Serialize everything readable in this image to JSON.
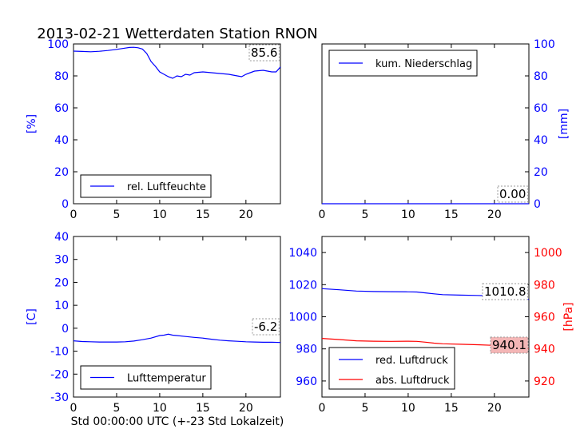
{
  "title": "2013-02-21 Wetterdaten Station RNON",
  "xlabel": "Std 00:00:00 UTC (+-23 Std Lokalzeit)",
  "colors": {
    "blue": "#0000ff",
    "red": "#ff0000",
    "black": "#000000",
    "value_box_red": "#f4b6b6"
  },
  "chart_data": [
    {
      "type": "line",
      "panel": "top-left",
      "xlim": [
        0,
        24
      ],
      "ylim": [
        0,
        100
      ],
      "xticks": [
        0,
        5,
        10,
        15,
        20
      ],
      "yticks": [
        0,
        20,
        40,
        60,
        80,
        100
      ],
      "ylabel": "[%]",
      "ylabel_side": "left",
      "legend_placement": "lower-left",
      "current_value": "85.6",
      "series": [
        {
          "name": "rel. Luftfeuchte",
          "color": "#0000ff",
          "x": [
            0,
            1,
            2,
            3,
            4,
            5,
            6,
            6.5,
            7,
            7.5,
            8,
            8.5,
            9,
            9.5,
            10,
            10.5,
            11,
            11.5,
            12,
            12.5,
            13,
            13.5,
            14,
            15,
            16,
            17,
            18,
            19,
            19.5,
            20,
            20.5,
            21,
            22,
            23,
            23.5,
            24
          ],
          "y": [
            95.5,
            95.3,
            95.1,
            95.4,
            95.9,
            96.6,
            97.4,
            97.8,
            97.9,
            97.6,
            96.8,
            94.0,
            89.0,
            86.0,
            82.5,
            81.0,
            79.5,
            78.5,
            80.0,
            79.5,
            81.0,
            80.5,
            82.0,
            82.5,
            82.0,
            81.5,
            81.0,
            80.0,
            79.5,
            81.0,
            82.0,
            83.0,
            83.5,
            82.5,
            82.5,
            85.6
          ]
        }
      ]
    },
    {
      "type": "line",
      "panel": "top-right",
      "xlim": [
        0,
        24
      ],
      "ylim": [
        0,
        100
      ],
      "xticks": [
        0,
        5,
        10,
        15,
        20
      ],
      "yticks": [
        0,
        20,
        40,
        60,
        80,
        100
      ],
      "ylabel": "[mm]",
      "ylabel_side": "right",
      "legend_placement": "upper-left",
      "current_value": "0.00",
      "series": [
        {
          "name": "kum. Niederschlag",
          "color": "#0000ff",
          "x": [
            0,
            24
          ],
          "y": [
            0,
            0
          ]
        }
      ]
    },
    {
      "type": "line",
      "panel": "bottom-left",
      "xlim": [
        0,
        24
      ],
      "ylim": [
        -30,
        40
      ],
      "xticks": [
        0,
        5,
        10,
        15,
        20
      ],
      "yticks": [
        -30,
        -20,
        -10,
        0,
        10,
        20,
        30,
        40
      ],
      "ylabel": "[C]",
      "ylabel_side": "left",
      "legend_placement": "lower-left",
      "current_value": "-6.2",
      "series": [
        {
          "name": "Lufttemperatur",
          "color": "#0000ff",
          "x": [
            0,
            1,
            2,
            3,
            4,
            5,
            6,
            7,
            8,
            9,
            10,
            10.5,
            11,
            11.5,
            12,
            13,
            14,
            15,
            16,
            17,
            18,
            19,
            20,
            21,
            22,
            23,
            24
          ],
          "y": [
            -5.5,
            -5.8,
            -5.9,
            -6.0,
            -6.0,
            -6.0,
            -5.9,
            -5.6,
            -5.0,
            -4.3,
            -3.2,
            -3.0,
            -2.6,
            -3.0,
            -3.2,
            -3.6,
            -4.0,
            -4.3,
            -4.8,
            -5.2,
            -5.5,
            -5.7,
            -5.9,
            -6.0,
            -6.1,
            -6.1,
            -6.2
          ]
        }
      ]
    },
    {
      "type": "line",
      "panel": "bottom-right",
      "xlim": [
        0,
        24
      ],
      "ylim": [
        950,
        1050
      ],
      "xticks": [
        0,
        5,
        10,
        15,
        20
      ],
      "yticks": [
        960,
        980,
        1000,
        1020,
        1040
      ],
      "ylabel": "",
      "ylim_right": [
        910,
        1010
      ],
      "yticks_right": [
        920,
        940,
        960,
        980,
        1000
      ],
      "ylabel_right": "[hPa]",
      "legend_placement": "lower-left",
      "current_value": "1010.8",
      "current_value_right": "940.1",
      "series": [
        {
          "name": "red. Luftdruck",
          "color": "#0000ff",
          "axis": "left",
          "x": [
            0,
            2,
            4,
            6,
            8,
            10,
            11,
            12,
            13,
            14,
            16,
            18,
            20,
            22,
            24
          ],
          "y": [
            1017.5,
            1016.8,
            1016.0,
            1015.7,
            1015.6,
            1015.5,
            1015.4,
            1014.9,
            1014.3,
            1013.8,
            1013.5,
            1013.3,
            1013.0,
            1012.3,
            1010.8
          ]
        },
        {
          "name": "abs. Luftdruck",
          "color": "#ff0000",
          "axis": "right",
          "x": [
            0,
            2,
            4,
            6,
            8,
            10,
            11,
            12,
            13,
            14,
            16,
            18,
            20,
            22,
            24
          ],
          "y": [
            946.5,
            945.8,
            945.0,
            944.8,
            944.7,
            944.8,
            944.7,
            944.2,
            943.6,
            943.2,
            942.9,
            942.6,
            942.2,
            941.4,
            940.1
          ]
        }
      ]
    }
  ]
}
